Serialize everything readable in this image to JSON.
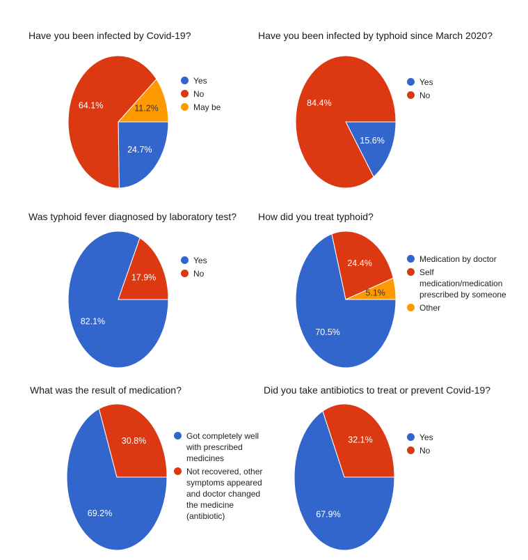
{
  "colors": {
    "blue": "#3366cc",
    "red": "#dc3912",
    "orange": "#ff9900"
  },
  "chart_data": [
    {
      "type": "pie",
      "title": "Have you been infected by Covid-19?",
      "categories": [
        "Yes",
        "No",
        "May be"
      ],
      "values": [
        24.7,
        64.1,
        11.2
      ],
      "labels": [
        "24.7%",
        "64.1%",
        "11.2%"
      ],
      "colors": [
        "#3366cc",
        "#dc3912",
        "#ff9900"
      ],
      "legend_position": "right"
    },
    {
      "type": "pie",
      "title": "Have you been infected by typhoid since March 2020?",
      "categories": [
        "Yes",
        "No"
      ],
      "values": [
        15.6,
        84.4
      ],
      "labels": [
        "15.6%",
        "84.4%"
      ],
      "colors": [
        "#3366cc",
        "#dc3912"
      ],
      "legend_position": "right"
    },
    {
      "type": "pie",
      "title": "Was typhoid fever diagnosed by laboratory test?",
      "categories": [
        "Yes",
        "No"
      ],
      "values": [
        82.1,
        17.9
      ],
      "labels": [
        "82.1%",
        "17.9%"
      ],
      "colors": [
        "#3366cc",
        "#dc3912"
      ],
      "legend_position": "right"
    },
    {
      "type": "pie",
      "title": "How did you treat typhoid?",
      "categories": [
        "Medication by doctor",
        "Self medication/medication prescribed by someone",
        "Other"
      ],
      "values": [
        70.5,
        24.4,
        5.1
      ],
      "labels": [
        "70.5%",
        "24.4%",
        "5.1%"
      ],
      "colors": [
        "#3366cc",
        "#dc3912",
        "#ff9900"
      ],
      "legend_position": "right"
    },
    {
      "type": "pie",
      "title": "What was the result of medication?",
      "categories": [
        "Got completely well with prescribed medicines",
        "Not recovered, other symptoms appeared and doctor changed the medicine (antibiotic)"
      ],
      "values": [
        69.2,
        30.8
      ],
      "labels": [
        "69.2%",
        "30.8%"
      ],
      "colors": [
        "#3366cc",
        "#dc3912"
      ],
      "legend_position": "right"
    },
    {
      "type": "pie",
      "title": "Did you take antibiotics to treat or prevent Covid-19?",
      "categories": [
        "Yes",
        "No"
      ],
      "values": [
        67.9,
        32.1
      ],
      "labels": [
        "67.9%",
        "32.1%"
      ],
      "colors": [
        "#3366cc",
        "#dc3912"
      ],
      "legend_position": "right"
    }
  ]
}
